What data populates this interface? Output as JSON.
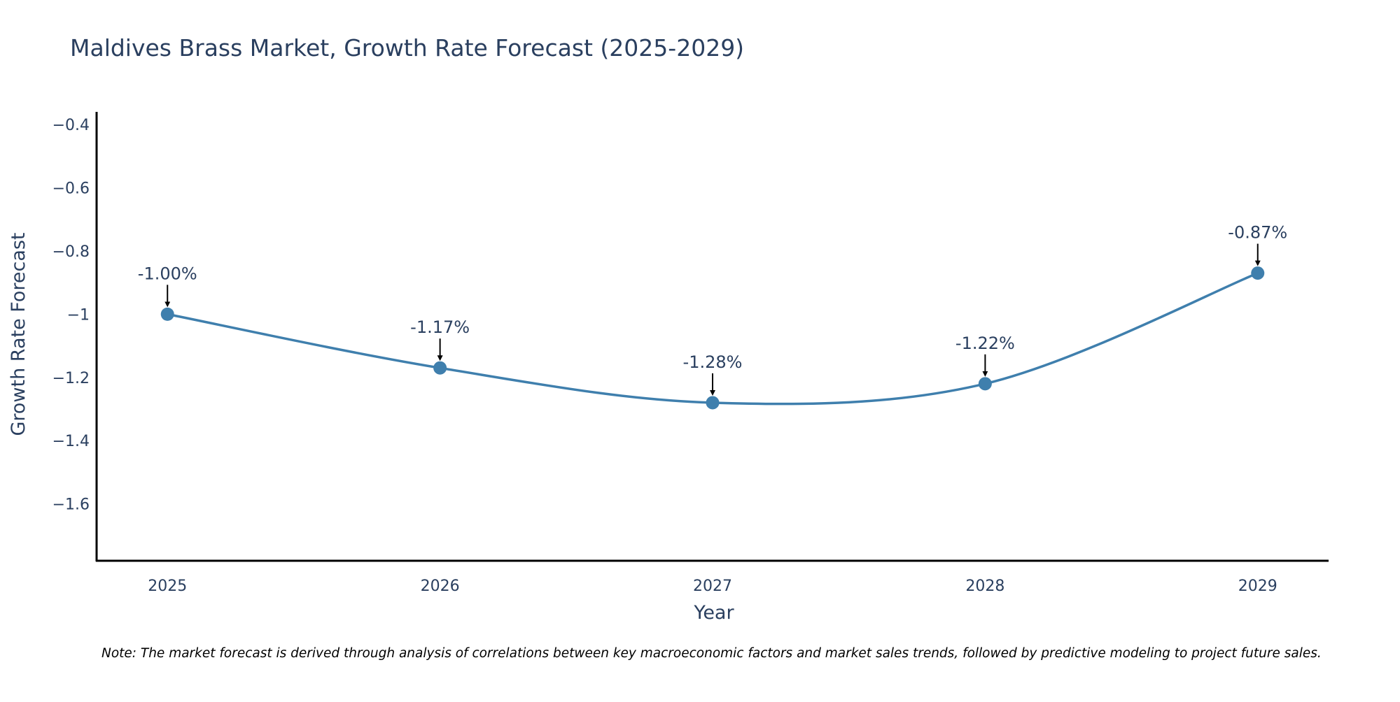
{
  "chart_data": {
    "type": "line",
    "title": "Maldives Brass Market, Growth Rate Forecast (2025-2029)",
    "xlabel": "Year",
    "ylabel": "Growth Rate Forecast",
    "categories": [
      "2025",
      "2026",
      "2027",
      "2028",
      "2029"
    ],
    "x": [
      2025,
      2026,
      2027,
      2028,
      2029
    ],
    "values": [
      -1.0,
      -1.17,
      -1.28,
      -1.22,
      -0.87
    ],
    "data_labels": [
      "-1.00%",
      "-1.17%",
      "-1.28%",
      "-1.22%",
      "-0.87%"
    ],
    "ylim": [
      -1.78,
      -0.36
    ],
    "xlim": [
      2024.74,
      2029.26
    ],
    "y_ticks": [
      -0.4,
      -0.6,
      -0.8,
      -1,
      -1.2,
      -1.4,
      -1.6
    ],
    "y_tick_labels": [
      "−0.4",
      "−0.6",
      "−0.8",
      "−1",
      "−1.2",
      "−1.4",
      "−1.6"
    ],
    "x_tick_labels": [
      "2025",
      "2026",
      "2027",
      "2028",
      "2029"
    ],
    "grid": false,
    "legend": "none",
    "line_shape": "spline",
    "line_color": "#3f7fad",
    "marker_color": "#3f7fad",
    "note": "Note: The market forecast is derived through analysis of correlations between key macroeconomic factors and market sales trends, followed by predictive modeling to project future sales."
  }
}
